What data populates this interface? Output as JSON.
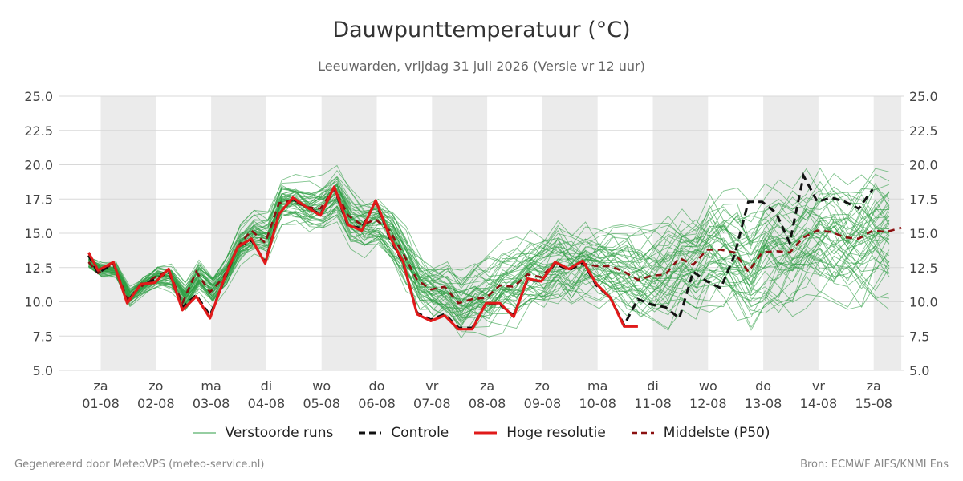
{
  "title": "Dauwpunttemperatuur (°C)",
  "subtitle": "Leeuwarden, vrijdag 31 juli 2026 (Versie vr 12 uur)",
  "footer_left": "Gegenereerd door MeteoVPS (meteo-service.nl)",
  "footer_right": "Bron: ECMWF AIFS/KNMI Ens",
  "legend": {
    "members": "Verstoorde runs",
    "control": "Controle",
    "hires": "Hoge resolutie",
    "median": "Middelste (P50)"
  },
  "colors": {
    "members": "#2e9e44",
    "control": "#111111",
    "hires": "#e01a1a",
    "median": "#8b1010",
    "weekend_band": "#ebebeb",
    "grid": "#d8d8d8"
  },
  "chart_data": {
    "type": "line",
    "title": "Dauwpunttemperatuur (°C)",
    "ylim": [
      5.0,
      25.0
    ],
    "yticks": [
      "5.0",
      "7.5",
      "10.0",
      "12.5",
      "15.0",
      "17.5",
      "20.0",
      "22.5",
      "25.0"
    ],
    "xlim": [
      -0.22,
      14.0
    ],
    "x_categories": [
      {
        "day": "za",
        "date": "01-08"
      },
      {
        "day": "zo",
        "date": "02-08"
      },
      {
        "day": "ma",
        "date": "03-08"
      },
      {
        "day": "di",
        "date": "04-08"
      },
      {
        "day": "wo",
        "date": "05-08"
      },
      {
        "day": "do",
        "date": "06-08"
      },
      {
        "day": "vr",
        "date": "07-08"
      },
      {
        "day": "za",
        "date": "08-08"
      },
      {
        "day": "zo",
        "date": "09-08"
      },
      {
        "day": "ma",
        "date": "10-08"
      },
      {
        "day": "di",
        "date": "11-08"
      },
      {
        "day": "wo",
        "date": "12-08"
      },
      {
        "day": "do",
        "date": "13-08"
      },
      {
        "day": "vr",
        "date": "14-08"
      },
      {
        "day": "za",
        "date": "15-08"
      }
    ],
    "shaded_intervals": [
      [
        0,
        1
      ],
      [
        2,
        3
      ],
      [
        4,
        5
      ],
      [
        6,
        7
      ],
      [
        8,
        9
      ],
      [
        10,
        11
      ],
      [
        12,
        13
      ],
      [
        14,
        14.5
      ]
    ],
    "grid": true,
    "legend_position": "bottom",
    "hires": {
      "name": "Hoge resolutie",
      "x": [
        -0.22,
        -0.05,
        0.23,
        0.48,
        0.73,
        0.98,
        1.23,
        1.48,
        1.73,
        1.98,
        2.23,
        2.48,
        2.73,
        2.98,
        3.23,
        3.48,
        3.73,
        3.98,
        4.23,
        4.48,
        4.73,
        4.98,
        5.23,
        5.48,
        5.73,
        5.98,
        6.23,
        6.48,
        6.73,
        6.98,
        7.23,
        7.48,
        7.73,
        7.98,
        8.23,
        8.48,
        8.73,
        8.98,
        9.23,
        9.48,
        9.73
      ],
      "y": [
        13.6,
        12.3,
        12.9,
        9.9,
        11.3,
        11.4,
        12.4,
        9.4,
        10.4,
        8.8,
        11.6,
        14.0,
        14.6,
        12.8,
        16.4,
        17.6,
        16.9,
        16.3,
        18.4,
        15.6,
        15.2,
        17.4,
        14.8,
        12.9,
        9.1,
        8.6,
        9.0,
        8.0,
        8.0,
        9.9,
        9.9,
        8.9,
        11.7,
        11.5,
        12.9,
        12.4,
        13.0,
        11.3,
        10.3,
        8.2,
        8.2
      ]
    },
    "control": {
      "name": "Controle",
      "x": [
        -0.22,
        -0.05,
        0.23,
        0.48,
        0.73,
        0.98,
        1.23,
        1.48,
        1.73,
        1.98,
        2.23,
        2.48,
        2.73,
        2.98,
        3.23,
        3.48,
        3.73,
        3.98,
        4.23,
        4.48,
        4.73,
        4.98,
        5.23,
        5.48,
        5.73,
        5.98,
        6.23,
        6.48,
        6.73,
        6.98,
        7.23,
        7.48,
        7.73,
        7.98,
        8.23,
        8.48,
        8.73,
        8.98,
        9.23,
        9.48,
        9.73,
        9.98,
        10.23,
        10.48,
        10.73,
        10.98,
        11.23,
        11.48,
        11.73,
        11.98,
        12.23,
        12.48,
        12.73,
        12.98,
        13.23,
        13.48,
        13.73,
        13.98
      ],
      "y": [
        13.4,
        12.1,
        12.8,
        10.0,
        11.3,
        11.6,
        12.2,
        9.6,
        10.5,
        9.0,
        11.5,
        14.0,
        14.5,
        12.9,
        16.5,
        17.5,
        16.9,
        16.4,
        18.3,
        15.5,
        15.4,
        17.3,
        14.7,
        12.8,
        9.2,
        8.7,
        9.1,
        8.1,
        8.1,
        9.9,
        9.8,
        9.0,
        11.6,
        11.5,
        12.8,
        12.3,
        12.9,
        11.2,
        10.3,
        8.3,
        10.2,
        9.8,
        9.6,
        8.8,
        12.2,
        11.5,
        11.0,
        13.4,
        17.3,
        17.3,
        16.5,
        14.3,
        19.2,
        17.3,
        17.6,
        17.3,
        16.8,
        18.2
      ]
    },
    "median": {
      "name": "Middelste (P50)",
      "x": [
        -0.22,
        -0.05,
        0.23,
        0.48,
        0.73,
        0.98,
        1.23,
        1.48,
        1.73,
        1.98,
        2.23,
        2.48,
        2.73,
        2.98,
        3.23,
        3.48,
        3.73,
        3.98,
        4.23,
        4.48,
        4.73,
        4.98,
        5.23,
        5.48,
        5.73,
        5.98,
        6.23,
        6.48,
        6.73,
        6.98,
        7.23,
        7.48,
        7.73,
        7.98,
        8.23,
        8.48,
        8.73,
        8.98,
        9.23,
        9.48,
        9.73,
        9.98,
        10.23,
        10.48,
        10.73,
        10.98,
        11.23,
        11.48,
        11.73,
        11.98,
        12.23,
        12.48,
        12.73,
        12.98,
        13.23,
        13.48,
        13.73,
        13.98,
        14.23,
        14.5
      ],
      "y": [
        12.9,
        12.1,
        12.8,
        10.2,
        11.1,
        11.8,
        12.3,
        9.9,
        12.2,
        10.7,
        11.8,
        14.0,
        15.2,
        14.3,
        17.2,
        17.4,
        16.9,
        16.8,
        18.3,
        16.3,
        15.6,
        16.0,
        15.2,
        13.5,
        11.6,
        10.9,
        11.1,
        9.9,
        10.2,
        10.3,
        11.2,
        11.1,
        12.0,
        11.8,
        12.9,
        12.3,
        12.8,
        12.6,
        12.6,
        12.2,
        11.6,
        11.9,
        12.0,
        13.2,
        12.7,
        13.8,
        13.8,
        13.6,
        12.2,
        13.6,
        13.7,
        13.6,
        14.7,
        15.2,
        15.1,
        14.7,
        14.6,
        15.2,
        15.1,
        15.4
      ]
    },
    "members": {
      "name": "Verstoorde runs",
      "count": 50
    }
  }
}
